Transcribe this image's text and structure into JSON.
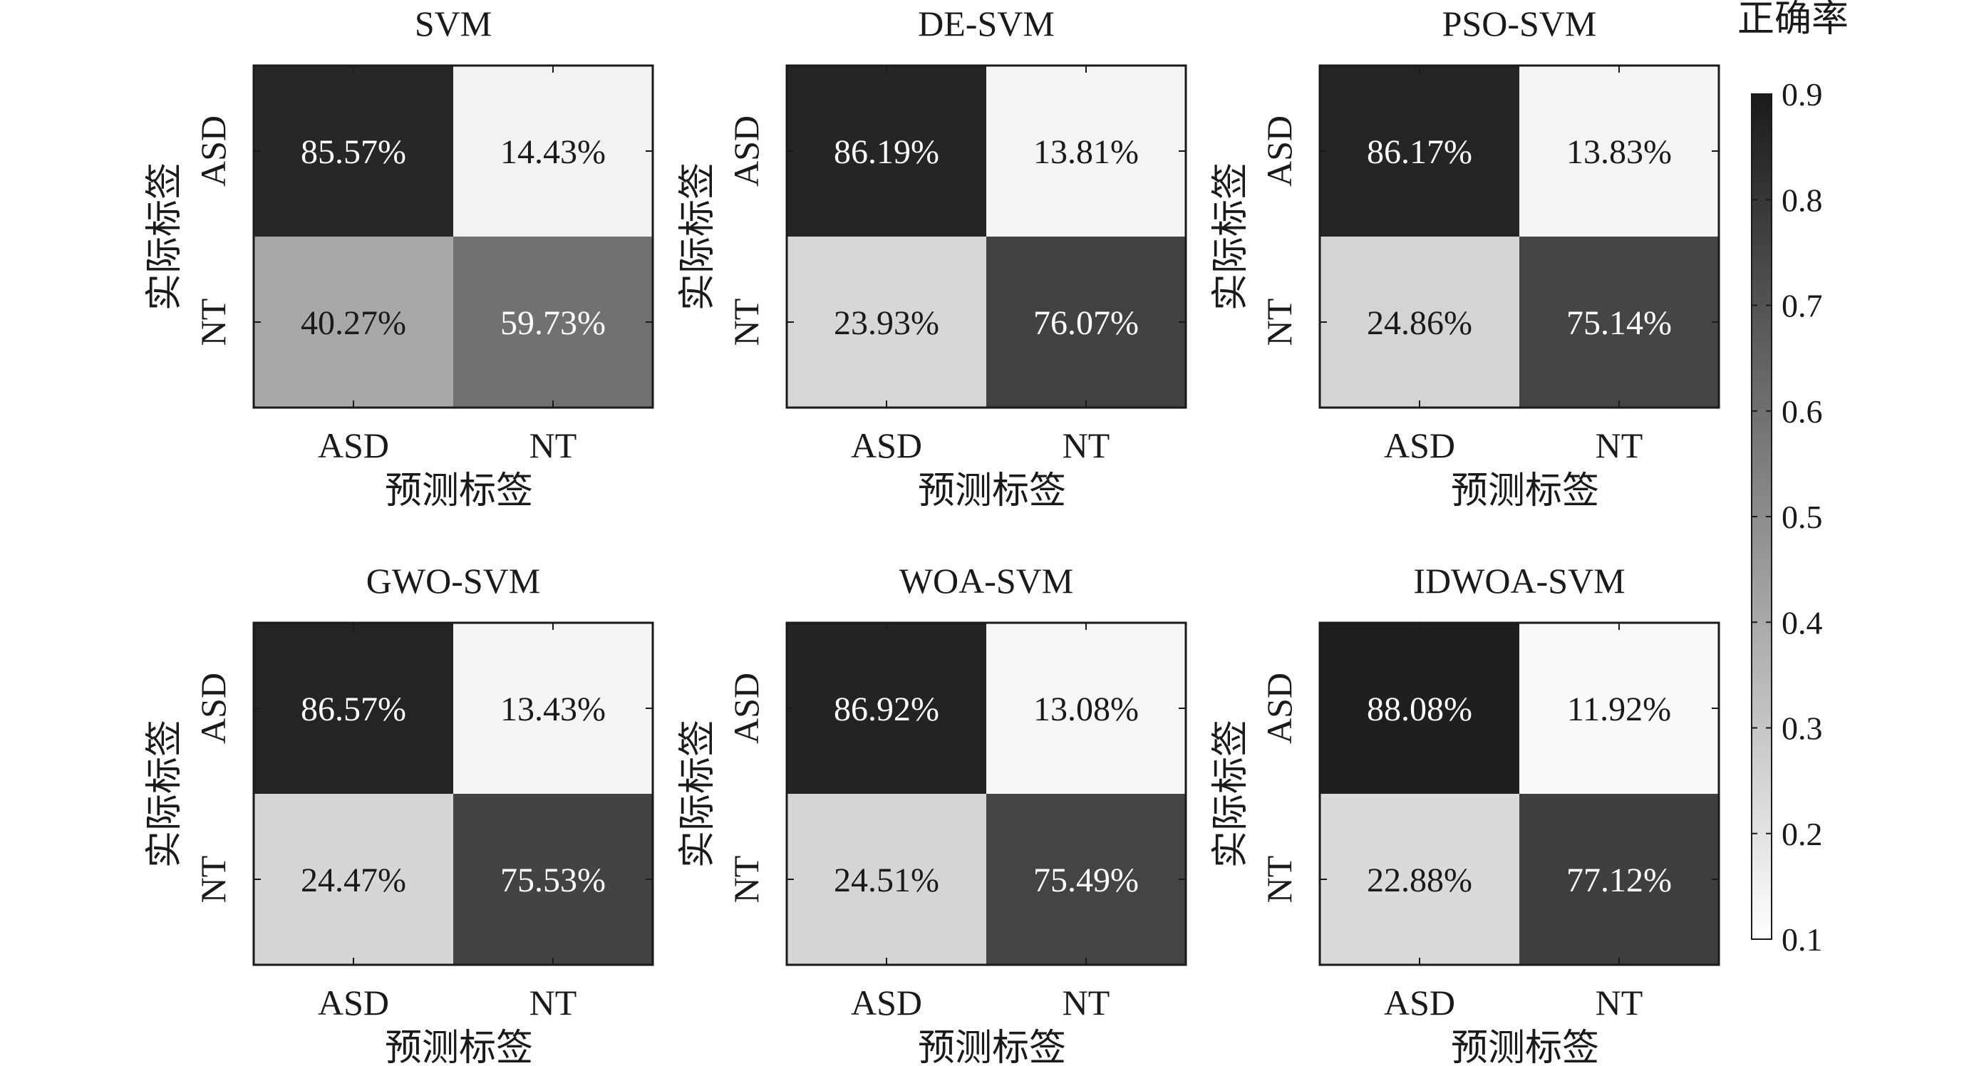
{
  "colorbar": {
    "title": "正确率",
    "range": [
      0.1,
      0.9
    ],
    "ticks": [
      "0.9",
      "0.8",
      "0.7",
      "0.6",
      "0.5",
      "0.4",
      "0.3",
      "0.2",
      "0.1"
    ],
    "color_low": "#ffffff",
    "color_high": "#1a1a1a"
  },
  "chart_data": [
    {
      "type": "heatmap",
      "title": "SVM",
      "xlabel": "预测标签",
      "ylabel": "实际标签",
      "x_ticks": [
        "ASD",
        "NT"
      ],
      "y_ticks": [
        "ASD",
        "NT"
      ],
      "values": [
        [
          85.57,
          14.43
        ],
        [
          40.27,
          59.73
        ]
      ],
      "labels": [
        [
          "85.57%",
          "14.43%"
        ],
        [
          "40.27%",
          "59.73%"
        ]
      ]
    },
    {
      "type": "heatmap",
      "title": "DE-SVM",
      "xlabel": "预测标签",
      "ylabel": "实际标签",
      "x_ticks": [
        "ASD",
        "NT"
      ],
      "y_ticks": [
        "ASD",
        "NT"
      ],
      "values": [
        [
          86.19,
          13.81
        ],
        [
          23.93,
          76.07
        ]
      ],
      "labels": [
        [
          "86.19%",
          "13.81%"
        ],
        [
          "23.93%",
          "76.07%"
        ]
      ]
    },
    {
      "type": "heatmap",
      "title": "PSO-SVM",
      "xlabel": "预测标签",
      "ylabel": "实际标签",
      "x_ticks": [
        "ASD",
        "NT"
      ],
      "y_ticks": [
        "ASD",
        "NT"
      ],
      "values": [
        [
          86.17,
          13.83
        ],
        [
          24.86,
          75.14
        ]
      ],
      "labels": [
        [
          "86.17%",
          "13.83%"
        ],
        [
          "24.86%",
          "75.14%"
        ]
      ]
    },
    {
      "type": "heatmap",
      "title": "GWO-SVM",
      "xlabel": "预测标签",
      "ylabel": "实际标签",
      "x_ticks": [
        "ASD",
        "NT"
      ],
      "y_ticks": [
        "ASD",
        "NT"
      ],
      "values": [
        [
          86.57,
          13.43
        ],
        [
          24.47,
          75.53
        ]
      ],
      "labels": [
        [
          "86.57%",
          "13.43%"
        ],
        [
          "24.47%",
          "75.53%"
        ]
      ]
    },
    {
      "type": "heatmap",
      "title": "WOA-SVM",
      "xlabel": "预测标签",
      "ylabel": "实际标签",
      "x_ticks": [
        "ASD",
        "NT"
      ],
      "y_ticks": [
        "ASD",
        "NT"
      ],
      "values": [
        [
          86.92,
          13.08
        ],
        [
          24.51,
          75.49
        ]
      ],
      "labels": [
        [
          "86.92%",
          "13.08%"
        ],
        [
          "24.51%",
          "75.49%"
        ]
      ]
    },
    {
      "type": "heatmap",
      "title": "IDWOA-SVM",
      "xlabel": "预测标签",
      "ylabel": "实际标签",
      "x_ticks": [
        "ASD",
        "NT"
      ],
      "y_ticks": [
        "ASD",
        "NT"
      ],
      "values": [
        [
          88.08,
          11.92
        ],
        [
          22.88,
          77.12
        ]
      ],
      "labels": [
        [
          "88.08%",
          "11.92%"
        ],
        [
          "22.88%",
          "77.12%"
        ]
      ]
    }
  ]
}
